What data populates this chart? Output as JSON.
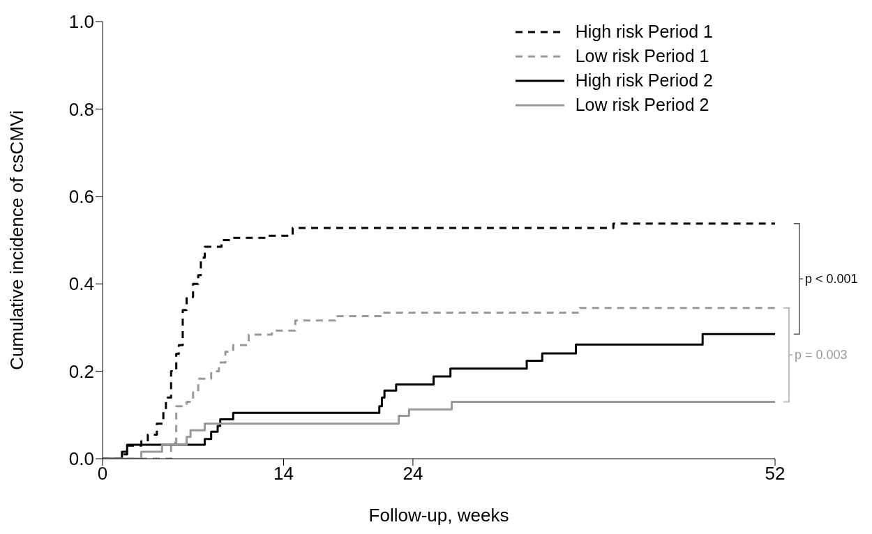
{
  "chart_data": {
    "type": "step",
    "xlabel": "Follow-up, weeks",
    "ylabel": "Cumulative incidence of csCMVi",
    "xlim": [
      0,
      52
    ],
    "xticks": [
      0,
      14,
      24,
      52
    ],
    "ylim": [
      0,
      1
    ],
    "yticks": [
      {
        "value": 0,
        "label": "0.0"
      },
      {
        "value": 0.2,
        "label": "0.2"
      },
      {
        "value": 0.4,
        "label": "0.4"
      },
      {
        "value": 0.6,
        "label": "0.6"
      },
      {
        "value": 0.8,
        "label": "0.8"
      },
      {
        "value": 1,
        "label": "1.0"
      }
    ],
    "legend": "top right",
    "marker": "none",
    "series": [
      {
        "name": "High risk Period 1",
        "color": "#000000",
        "line_style": "dashed",
        "x": [
          0,
          1.5,
          1.9,
          3.0,
          3.5,
          4.2,
          4.7,
          4.9,
          5.3,
          5.7,
          5.9,
          6.2,
          6.5,
          7.0,
          7.4,
          7.6,
          7.9,
          9.2,
          9.9,
          12.8,
          14.7,
          39.5,
          52
        ],
        "values": [
          0,
          0.01,
          0.03,
          0.04,
          0.055,
          0.08,
          0.11,
          0.14,
          0.2,
          0.24,
          0.26,
          0.34,
          0.37,
          0.4,
          0.42,
          0.46,
          0.485,
          0.5,
          0.505,
          0.51,
          0.528,
          0.538,
          0.538
        ]
      },
      {
        "name": "Low risk Period 1",
        "color": "#999999",
        "line_style": "dashed",
        "x": [
          0,
          5.3,
          5.7,
          6.5,
          7.0,
          7.4,
          8.4,
          9.0,
          9.5,
          10.1,
          11.3,
          13.1,
          14.9,
          18.0,
          21.5,
          36.9,
          52
        ],
        "values": [
          0,
          0.037,
          0.12,
          0.13,
          0.154,
          0.183,
          0.2,
          0.22,
          0.245,
          0.26,
          0.284,
          0.293,
          0.316,
          0.326,
          0.334,
          0.345,
          0.345
        ]
      },
      {
        "name": "High risk Period 2",
        "color": "#000000",
        "line_style": "solid",
        "x": [
          0,
          1.5,
          1.9,
          7.9,
          8.4,
          8.9,
          9.1,
          10.1,
          21.4,
          21.6,
          21.8,
          22.7,
          25.6,
          26.9,
          32.8,
          34.0,
          36.6,
          46.4,
          52
        ],
        "values": [
          0,
          0.016,
          0.032,
          0.045,
          0.062,
          0.075,
          0.09,
          0.105,
          0.12,
          0.14,
          0.156,
          0.17,
          0.188,
          0.206,
          0.224,
          0.241,
          0.261,
          0.285,
          0.285
        ]
      },
      {
        "name": "Low risk Period 2",
        "color": "#999999",
        "line_style": "solid",
        "x": [
          0,
          3.0,
          4.6,
          6.5,
          6.8,
          7.9,
          22.9,
          23.7,
          27.0,
          52
        ],
        "values": [
          0,
          0.016,
          0.032,
          0.05,
          0.065,
          0.08,
          0.098,
          0.113,
          0.13,
          0.13
        ]
      }
    ],
    "annotations": [
      "p < 0.001",
      "p = 0.003"
    ]
  }
}
